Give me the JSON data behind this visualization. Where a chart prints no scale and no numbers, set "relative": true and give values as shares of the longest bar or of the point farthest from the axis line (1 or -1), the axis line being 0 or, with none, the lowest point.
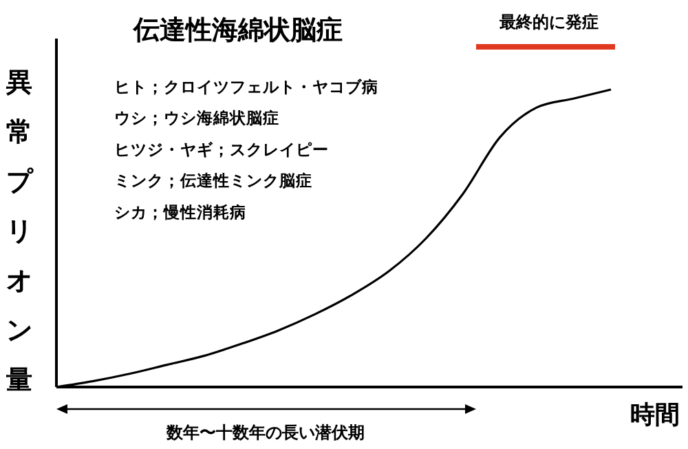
{
  "chart_data": {
    "type": "line",
    "title": "伝達性海綿状脳症",
    "ylabel": "異常プリオン量",
    "xlabel": "時間",
    "relative": true,
    "categories": [
      null,
      null,
      null,
      null,
      null,
      null,
      null,
      null,
      null,
      null,
      null,
      null,
      null,
      null,
      null,
      null
    ],
    "series": [
      {
        "color": "#000000",
        "values": [
          0,
          0.02,
          0.045,
          0.075,
          0.105,
          0.145,
          0.19,
          0.245,
          0.31,
          0.39,
          0.5,
          0.65,
          0.84,
          0.94,
          0.97,
          1
        ]
      }
    ],
    "annotations": [
      "ヒト；クロイツフェルト・ヤコブ病",
      "ウシ；ウシ海綿状脳症",
      "ヒツジ・ヤギ；スクレイピー",
      "ミンク；伝達性ミンク脳症",
      "シカ；慢性消耗病",
      "最終的に発症",
      "数年〜十数年の長い潜伏期"
    ],
    "marker": "none",
    "line_style": "solid"
  }
}
